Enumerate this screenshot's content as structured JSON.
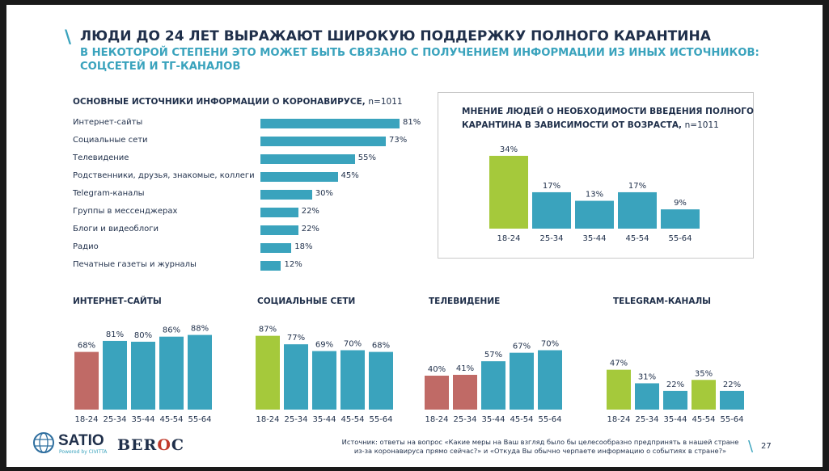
{
  "header": {
    "title": "ЛЮДИ ДО 24 ЛЕТ ВЫРАЖАЮТ ШИРОКУЮ ПОДДЕРЖКУ ПОЛНОГО КАРАНТИНА",
    "subtitle_line1": "В НЕКОТОРОЙ СТЕПЕНИ ЭТО МОЖЕТ БЫТЬ СВЯЗАНО С ПОЛУЧЕНИЕМ ИНФОРМАЦИИ ИЗ ИНЫХ ИСТОЧНИКОВ:",
    "subtitle_line2": "СОЦСЕТЕЙ И ТГ-КАНАЛОВ"
  },
  "footer": {
    "source_line1": "Источник: ответы на вопрос «Какие меры на Ваш взгляд было бы целесообразно предпринять в нашей стране",
    "source_line2": "из-за коронавируса прямо сейчас?» и «Откуда Вы обычно черпаете информацию о событиях в стране?»",
    "page_number": "27",
    "logo_satio": "SATIO",
    "logo_satio_sub": "Powered by CIVITTA",
    "logo_beroc_a": "BER",
    "logo_beroc_b": "O",
    "logo_beroc_c": "C"
  },
  "colors": {
    "blue": "#3aa3bd",
    "green": "#a5c93b",
    "red": "#c06a66",
    "navy": "#1f2f4a"
  },
  "chart_data": [
    {
      "id": "sources",
      "type": "bar",
      "orientation": "horizontal",
      "title": "ОСНОВНЫЕ ИСТОЧНИКИ ИНФОРМАЦИИ О КОРОНАВИРУСЕ,",
      "title_n": "n=1011",
      "categories": [
        "Интернет-сайты",
        "Социальные сети",
        "Телевидение",
        "Родственники, друзья, знакомые, коллеги",
        "Telegram-каналы",
        "Группы в мессенджерах",
        "Блоги и видеоблоги",
        "Радио",
        "Печатные газеты и журналы"
      ],
      "values": [
        81,
        73,
        55,
        45,
        30,
        22,
        22,
        18,
        12
      ],
      "labels": [
        "81%",
        "73%",
        "55%",
        "45%",
        "30%",
        "22%",
        "22%",
        "18%",
        "12%"
      ]
    },
    {
      "id": "quarantine",
      "type": "bar",
      "title": "МНЕНИЕ ЛЮДЕЙ О НЕОБХОДИМОСТИ ВВЕДЕНИЯ ПОЛНОГО",
      "title_line2": "КАРАНТИНА В ЗАВИСИМОСТИ ОТ ВОЗРАСТА,",
      "title_n": "n=1011",
      "categories": [
        "18-24",
        "25-34",
        "35-44",
        "45-54",
        "55-64"
      ],
      "values": [
        34,
        17,
        13,
        17,
        9
      ],
      "labels": [
        "34%",
        "17%",
        "13%",
        "17%",
        "9%"
      ],
      "colors": [
        "green",
        "blue",
        "blue",
        "blue",
        "blue"
      ]
    },
    {
      "id": "internet",
      "type": "bar",
      "title": "ИНТЕРНЕТ-САЙТЫ",
      "categories": [
        "18-24",
        "25-34",
        "35-44",
        "45-54",
        "55-64"
      ],
      "values": [
        68,
        81,
        80,
        86,
        88
      ],
      "labels": [
        "68%",
        "81%",
        "80%",
        "86%",
        "88%"
      ],
      "colors": [
        "red",
        "blue",
        "blue",
        "blue",
        "blue"
      ]
    },
    {
      "id": "social",
      "type": "bar",
      "title": "СОЦИАЛЬНЫЕ СЕТИ",
      "categories": [
        "18-24",
        "25-34",
        "35-44",
        "45-54",
        "55-64"
      ],
      "values": [
        87,
        77,
        69,
        70,
        68
      ],
      "labels": [
        "87%",
        "77%",
        "69%",
        "70%",
        "68%"
      ],
      "colors": [
        "green",
        "blue",
        "blue",
        "blue",
        "blue"
      ]
    },
    {
      "id": "tv",
      "type": "bar",
      "title": "ТЕЛЕВИДЕНИЕ",
      "categories": [
        "18-24",
        "25-34",
        "35-44",
        "45-54",
        "55-64"
      ],
      "values": [
        40,
        41,
        57,
        67,
        70
      ],
      "labels": [
        "40%",
        "41%",
        "57%",
        "67%",
        "70%"
      ],
      "colors": [
        "red",
        "red",
        "blue",
        "blue",
        "blue"
      ]
    },
    {
      "id": "telegram",
      "type": "bar",
      "title": "TELEGRAM-КАНАЛЫ",
      "categories": [
        "18-24",
        "25-34",
        "35-44",
        "45-54",
        "55-64"
      ],
      "values": [
        47,
        31,
        22,
        35,
        22
      ],
      "labels": [
        "47%",
        "31%",
        "22%",
        "35%",
        "22%"
      ],
      "colors": [
        "green",
        "blue",
        "blue",
        "green",
        "blue"
      ]
    }
  ]
}
